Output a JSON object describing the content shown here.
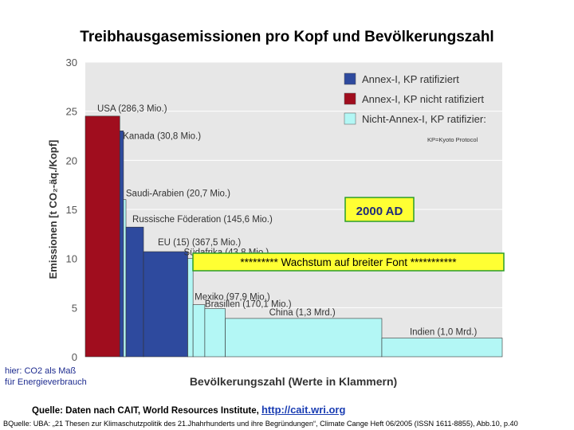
{
  "slide": {
    "title": "Treibhausgasemissionen pro Kopf und Bevölkerungszahl",
    "note_line1": "hier: CO2 als Maß",
    "note_line2": "für Energieverbrauch",
    "source_label": "Quelle: Daten nach CAIT, World Resources Institute, ",
    "source_link": "http://cait.wri.org",
    "source_line2": "BQuelle: UBA: „21 Thesen zur Klimaschutzpolitik des 21.Jhahrhunderts und ihre Begründungen“, Climate Cange Heft 06/2005 (ISSN 1611-8855), Abb.10, p.40"
  },
  "chart_data": {
    "type": "bar",
    "variable_width": true,
    "ylabel": "Emissionen [t CO₂-äq./Kopf]",
    "xlabel": "Bevölkerungszahl (Werte in Klammern)",
    "ylim": [
      0,
      30
    ],
    "yticks": [
      "0",
      "5",
      "10",
      "15",
      "20",
      "25",
      "30"
    ],
    "legend": [
      {
        "label": "Annex-I, KP ratifiziert",
        "color": "#2e4a9e"
      },
      {
        "label": "Annex-I, KP nicht ratifiziert",
        "color": "#a00d1e"
      },
      {
        "label": "Nicht-Annex-I, KP ratifizier:",
        "color": "#b3f7f5"
      }
    ],
    "legend_placement": "top-right",
    "legend_note": "KP=Kyoto Protocol",
    "annotation_2000": "2000 AD",
    "annotation_growth": "********* Wachstum auf breiter Font ***********",
    "bars": [
      {
        "country": "USA",
        "label": "USA (286,3 Mio.)",
        "population_mio": 286.3,
        "value": 24.5,
        "group": 1
      },
      {
        "country": "Kanada",
        "label": "Kanada (30,8 Mio.)",
        "population_mio": 30.8,
        "value": 23.0,
        "group": 0
      },
      {
        "country": "Saudi-Arabien",
        "label": "Saudi-Arabien (20,7 Mio.)",
        "population_mio": 20.7,
        "value": 16.0,
        "group": 2
      },
      {
        "country": "Russische Föderation",
        "label": "Russische Föderation (145,6 Mio.)",
        "population_mio": 145.6,
        "value": 13.2,
        "group": 0
      },
      {
        "country": "EU (15)",
        "label": "EU (15) (367,5 Mio.)",
        "population_mio": 367.5,
        "value": 10.7,
        "group": 0
      },
      {
        "country": "Südafrika",
        "label": "Südafrika (43,8 Mio.)",
        "population_mio": 43.8,
        "value": 10.0,
        "group": 2
      },
      {
        "country": "Mexiko",
        "label": "Mexiko (97,9 Mio.)",
        "population_mio": 97.9,
        "value": 5.3,
        "group": 2
      },
      {
        "country": "Brasilien",
        "label": "Brasilien (170,1 Mio.)",
        "population_mio": 170.1,
        "value": 4.9,
        "group": 2
      },
      {
        "country": "China",
        "label": "China (1,3 Mrd.)",
        "population_mio": 1300,
        "value": 3.9,
        "group": 2
      },
      {
        "country": "Indien",
        "label": "Indien (1,0 Mrd.)",
        "population_mio": 1000,
        "value": 1.9,
        "group": 2
      }
    ]
  }
}
